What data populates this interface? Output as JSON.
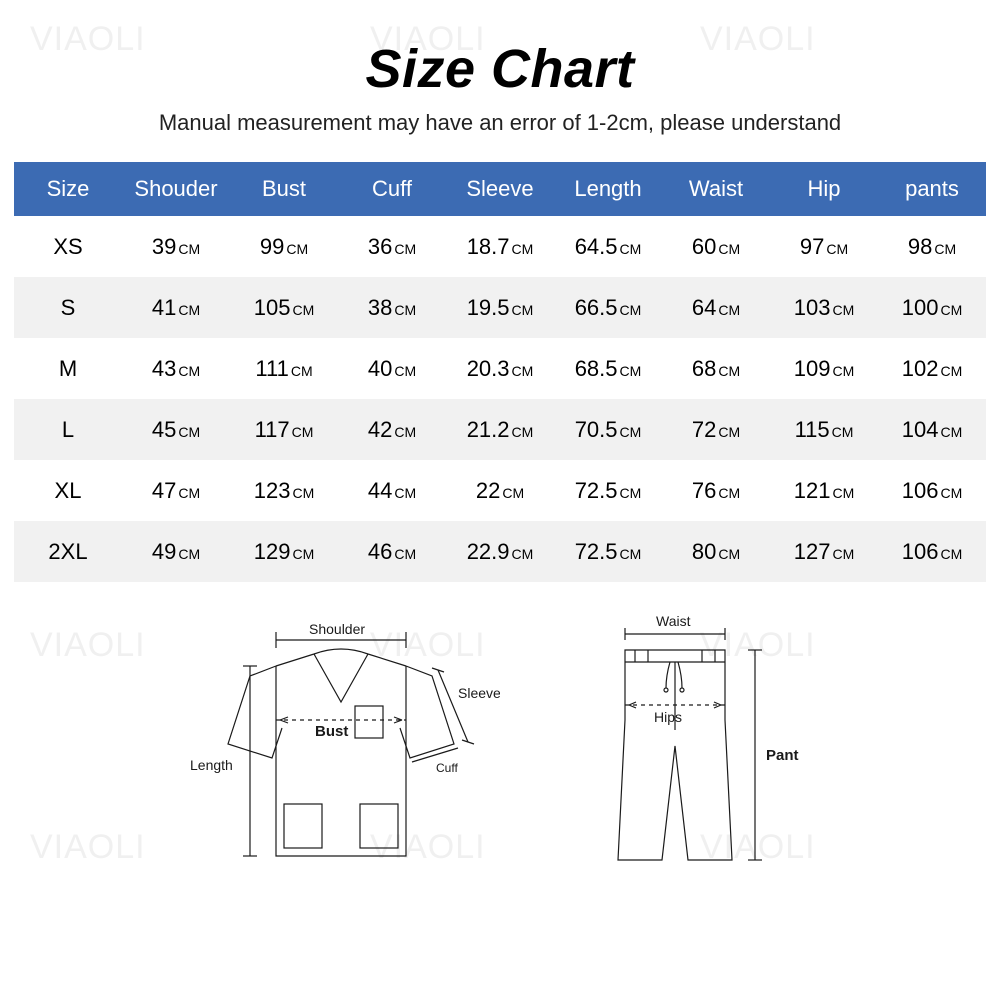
{
  "title": "Size Chart",
  "title_fontsize": 54,
  "subtitle": "Manual measurement may have an error of 1-2cm, please understand",
  "subtitle_fontsize": 22,
  "watermark_text": "VIAOLI",
  "colors": {
    "header_bg": "#3c6bb3",
    "header_text": "#ffffff",
    "row_even": "#ffffff",
    "row_odd": "#f1f1f1",
    "text": "#000000",
    "background": "#ffffff",
    "diagram_stroke": "#1a1a1a",
    "watermark": "#f0f0f0"
  },
  "table": {
    "header_fontsize": 22,
    "cell_num_fontsize": 22,
    "cell_unit_fontsize": 14,
    "unit": "CM",
    "columns": [
      "Size",
      "Shouder",
      "Bust",
      "Cuff",
      "Sleeve",
      "Length",
      "Waist",
      "Hip",
      "pants"
    ],
    "rows": [
      {
        "size": "XS",
        "values": [
          "39",
          "99",
          "36",
          "18.7",
          "64.5",
          "60",
          "97",
          "98"
        ]
      },
      {
        "size": "S",
        "values": [
          "41",
          "105",
          "38",
          "19.5",
          "66.5",
          "64",
          "103",
          "100"
        ]
      },
      {
        "size": "M",
        "values": [
          "43",
          "111",
          "40",
          "20.3",
          "68.5",
          "68",
          "109",
          "102"
        ]
      },
      {
        "size": "L",
        "values": [
          "45",
          "117",
          "42",
          "21.2",
          "70.5",
          "72",
          "115",
          "104"
        ]
      },
      {
        "size": "XL",
        "values": [
          "47",
          "123",
          "44",
          "22",
          "72.5",
          "76",
          "121",
          "106"
        ]
      },
      {
        "size": "2XL",
        "values": [
          "49",
          "129",
          "46",
          "22.9",
          "72.5",
          "80",
          "127",
          "106"
        ]
      }
    ]
  },
  "diagram": {
    "shirt_labels": {
      "shoulder": "Shoulder",
      "sleeve": "Sleeve",
      "bust": "Bust",
      "cuff": "Cuff",
      "length": "Length"
    },
    "pants_labels": {
      "waist": "Waist",
      "hips": "Hips",
      "pant": "Pant"
    },
    "label_fontsize": 14
  }
}
